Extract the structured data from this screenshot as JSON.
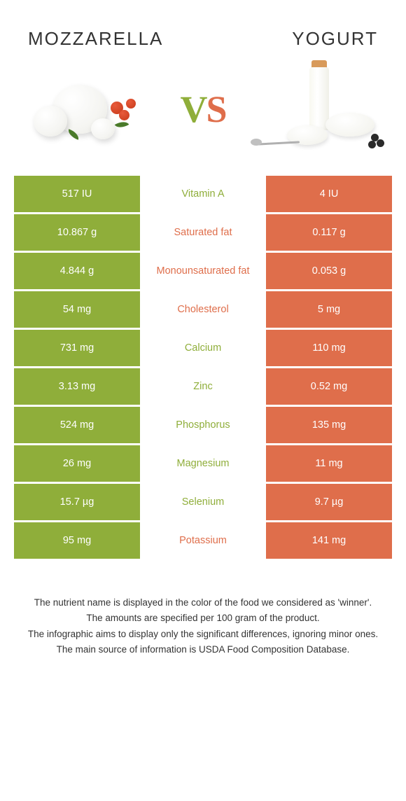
{
  "header": {
    "left_title": "Mozzarella",
    "right_title": "Yogurt",
    "vs_v": "V",
    "vs_s": "S"
  },
  "colors": {
    "left": "#8fae3a",
    "right": "#df6e4b",
    "text_dark": "#333333",
    "white": "#ffffff"
  },
  "table": {
    "rows": [
      {
        "left": "517 IU",
        "label": "Vitamin A",
        "right": "4 IU",
        "winner": "left"
      },
      {
        "left": "10.867 g",
        "label": "Saturated fat",
        "right": "0.117 g",
        "winner": "right"
      },
      {
        "left": "4.844 g",
        "label": "Monounsaturated fat",
        "right": "0.053 g",
        "winner": "right"
      },
      {
        "left": "54 mg",
        "label": "Cholesterol",
        "right": "5 mg",
        "winner": "right"
      },
      {
        "left": "731 mg",
        "label": "Calcium",
        "right": "110 mg",
        "winner": "left"
      },
      {
        "left": "3.13 mg",
        "label": "Zinc",
        "right": "0.52 mg",
        "winner": "left"
      },
      {
        "left": "524 mg",
        "label": "Phosphorus",
        "right": "135 mg",
        "winner": "left"
      },
      {
        "left": "26 mg",
        "label": "Magnesium",
        "right": "11 mg",
        "winner": "left"
      },
      {
        "left": "15.7 µg",
        "label": "Selenium",
        "right": "9.7 µg",
        "winner": "left"
      },
      {
        "left": "95 mg",
        "label": "Potassium",
        "right": "141 mg",
        "winner": "right"
      }
    ]
  },
  "footer": {
    "line1": "The nutrient name is displayed in the color of the food we considered as 'winner'.",
    "line2": "The amounts are specified per 100 gram of the product.",
    "line3": "The infographic aims to display only the significant differences, ignoring minor ones.",
    "line4": "The main source of information is USDA Food Composition Database."
  }
}
